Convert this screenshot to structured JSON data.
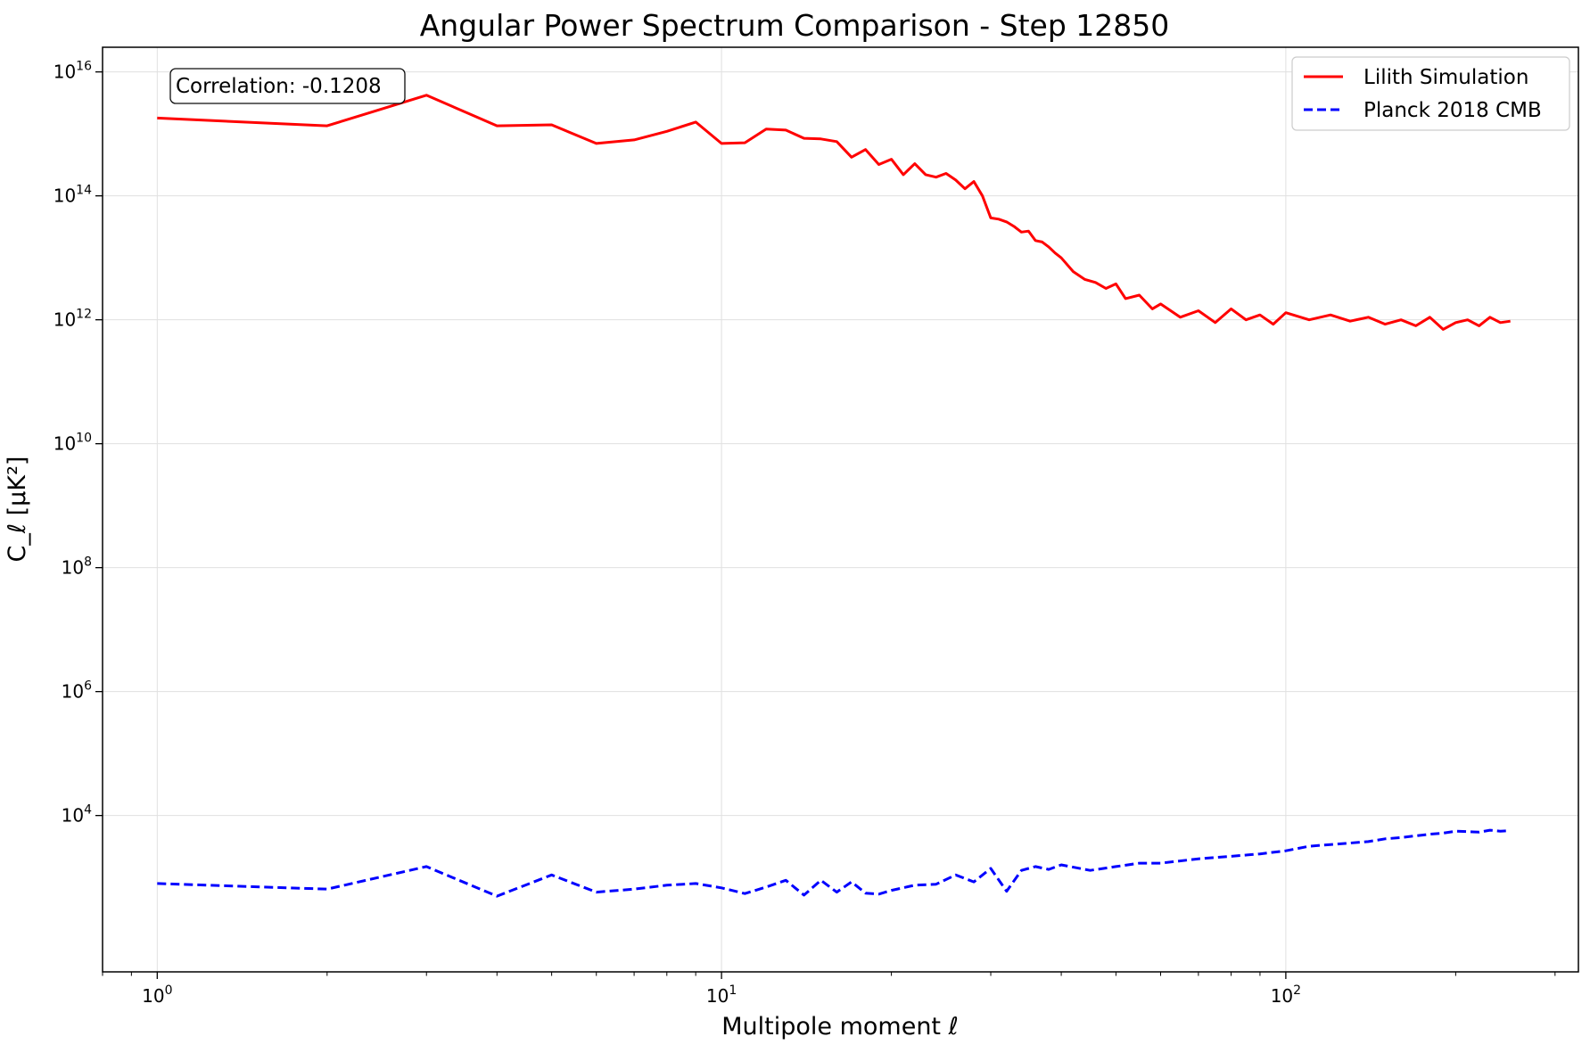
{
  "chart_data": {
    "type": "line",
    "title": "Angular Power Spectrum Comparison - Step 12850",
    "xlabel": "Multipole moment ℓ",
    "ylabel": "C_ℓ [μK²]",
    "x_scale": "log",
    "y_scale": "log",
    "xlim": [
      0.8,
      330
    ],
    "ylim": [
      30,
      25000000000000000
    ],
    "x_ticks": [
      {
        "value": 1,
        "base": "10",
        "exp": "0"
      },
      {
        "value": 10,
        "base": "10",
        "exp": "1"
      },
      {
        "value": 100,
        "base": "10",
        "exp": "2"
      }
    ],
    "y_ticks": [
      {
        "value": 10000,
        "base": "10",
        "exp": "4"
      },
      {
        "value": 1000000,
        "base": "10",
        "exp": "6"
      },
      {
        "value": 100000000,
        "base": "10",
        "exp": "8"
      },
      {
        "value": 10000000000,
        "base": "10",
        "exp": "10"
      },
      {
        "value": 1000000000000,
        "base": "10",
        "exp": "12"
      },
      {
        "value": 100000000000000,
        "base": "10",
        "exp": "14"
      },
      {
        "value": 10000000000000000,
        "base": "10",
        "exp": "16"
      }
    ],
    "grid": true,
    "legend_position": "top-right",
    "annotation": "Correlation: -0.1208",
    "series": [
      {
        "name": "Lilith Simulation",
        "color": "#ff0000",
        "style": "solid",
        "x": [
          1,
          2,
          3,
          4,
          5,
          6,
          7,
          8,
          9,
          10,
          11,
          12,
          13,
          14,
          15,
          16,
          17,
          18,
          19,
          20,
          21,
          22,
          23,
          24,
          25,
          26,
          27,
          28,
          29,
          30,
          31,
          32,
          33,
          34,
          35,
          36,
          37,
          38,
          39,
          40,
          42,
          44,
          46,
          48,
          50,
          52,
          55,
          58,
          60,
          65,
          70,
          75,
          80,
          85,
          90,
          95,
          100,
          110,
          120,
          130,
          140,
          150,
          160,
          170,
          180,
          190,
          200,
          210,
          220,
          230,
          240,
          250
        ],
        "y": [
          1800000000000000.0,
          1350000000000000.0,
          4200000000000000.0,
          1350000000000000.0,
          1400000000000000.0,
          700000000000000.0,
          800000000000000.0,
          1100000000000000.0,
          1550000000000000.0,
          700000000000000.0,
          720000000000000.0,
          1200000000000000.0,
          1150000000000000.0,
          850000000000000.0,
          830000000000000.0,
          750000000000000.0,
          420000000000000.0,
          560000000000000.0,
          320000000000000.0,
          390000000000000.0,
          220000000000000.0,
          330000000000000.0,
          220000000000000.0,
          200000000000000.0,
          230000000000000.0,
          180000000000000.0,
          130000000000000.0,
          170000000000000.0,
          100000000000000.0,
          44000000000000.0,
          42000000000000.0,
          38000000000000.0,
          32000000000000.0,
          26000000000000.0,
          27000000000000.0,
          19000000000000.0,
          18000000000000.0,
          15000000000000.0,
          12000000000000.0,
          10000000000000.0,
          6000000000000.0,
          4500000000000.0,
          4000000000000.0,
          3200000000000.0,
          3800000000000.0,
          2200000000000.0,
          2500000000000.0,
          1500000000000.0,
          1800000000000.0,
          1100000000000.0,
          1400000000000.0,
          900000000000.0,
          1500000000000.0,
          1000000000000.0,
          1200000000000.0,
          850000000000.0,
          1300000000000.0,
          1000000000000.0,
          1200000000000.0,
          950000000000.0,
          1100000000000.0,
          850000000000.0,
          1000000000000.0,
          800000000000.0,
          1100000000000.0,
          700000000000.0,
          900000000000.0,
          1000000000000.0,
          800000000000.0,
          1100000000000.0,
          900000000000.0,
          950000000000.0
        ]
      },
      {
        "name": "Planck 2018 CMB",
        "color": "#0000ff",
        "style": "dashed",
        "x": [
          1,
          2,
          3,
          4,
          5,
          6,
          7,
          8,
          9,
          10,
          11,
          12,
          13,
          14,
          15,
          16,
          17,
          18,
          19,
          20,
          22,
          24,
          26,
          28,
          30,
          32,
          34,
          36,
          38,
          40,
          45,
          50,
          55,
          60,
          70,
          80,
          90,
          100,
          110,
          120,
          130,
          140,
          150,
          160,
          170,
          180,
          190,
          200,
          210,
          220,
          230,
          240,
          250
        ],
        "y": [
          800,
          650,
          1500,
          500,
          1100,
          580,
          650,
          750,
          800,
          680,
          550,
          700,
          900,
          520,
          900,
          580,
          850,
          560,
          540,
          620,
          750,
          780,
          1100,
          850,
          1400,
          600,
          1300,
          1500,
          1350,
          1600,
          1300,
          1500,
          1700,
          1700,
          2000,
          2200,
          2400,
          2700,
          3200,
          3400,
          3600,
          3800,
          4200,
          4400,
          4700,
          5000,
          5200,
          5600,
          5500,
          5400,
          5800,
          5600,
          5700
        ]
      }
    ]
  }
}
